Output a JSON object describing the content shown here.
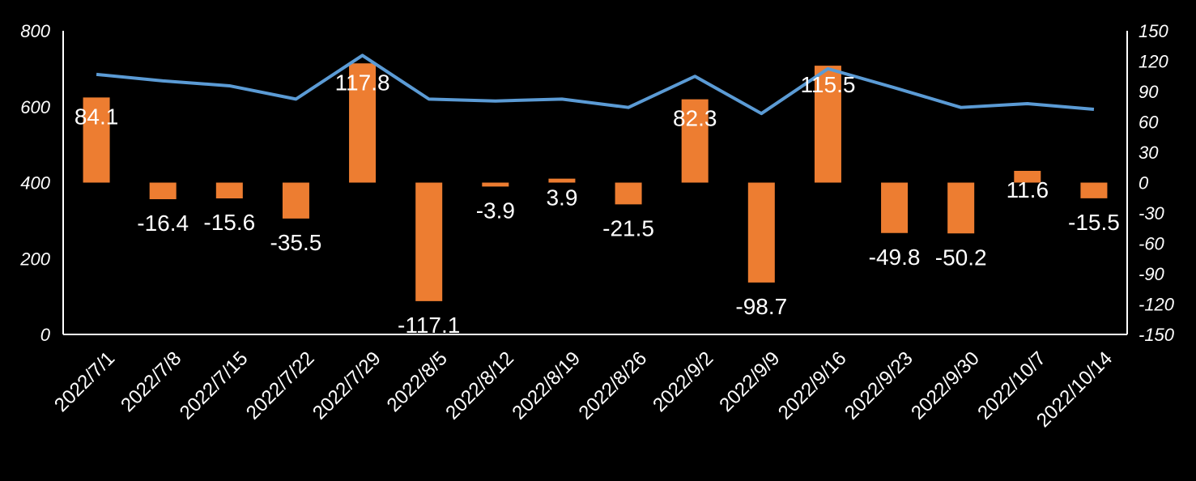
{
  "chart_data": {
    "type": "bar",
    "categories": [
      "2022/7/1",
      "2022/7/8",
      "2022/7/15",
      "2022/7/22",
      "2022/7/29",
      "2022/8/5",
      "2022/8/12",
      "2022/8/19",
      "2022/8/26",
      "2022/9/2",
      "2022/9/9",
      "2022/9/16",
      "2022/9/23",
      "2022/9/30",
      "2022/10/7",
      "2022/10/14"
    ],
    "series": [
      {
        "type": "bar",
        "axis": "right",
        "color": "#ed7d31",
        "values": [
          84.1,
          -16.4,
          -15.6,
          -35.5,
          117.8,
          -117.1,
          -3.9,
          3.9,
          -21.5,
          82.3,
          -98.7,
          115.5,
          -49.8,
          -50.2,
          11.6,
          -15.5
        ],
        "data_labels": [
          "84.1",
          "-16.4",
          "-15.6",
          "-35.5",
          "117.8",
          "-117.1",
          "-3.9",
          "3.9",
          "-21.5",
          "82.3",
          "-98.7",
          "115.5",
          "-49.8",
          "-50.2",
          "11.6",
          "-15.5"
        ]
      },
      {
        "type": "line",
        "axis": "left",
        "color": "#5b9bd5",
        "values": [
          685,
          668,
          655,
          620,
          735,
          620,
          615,
          620,
          598,
          680,
          582,
          700,
          650,
          598,
          608,
          593
        ]
      }
    ],
    "y_left": {
      "lim": [
        0,
        800
      ],
      "ticks": [
        "0",
        "200",
        "400",
        "600",
        "800"
      ]
    },
    "y_right": {
      "lim": [
        -150,
        150
      ],
      "ticks": [
        "-150",
        "-120",
        "-90",
        "-60",
        "-30",
        "0",
        "30",
        "60",
        "90",
        "120",
        "150"
      ]
    },
    "grid": false,
    "legend": "none"
  }
}
